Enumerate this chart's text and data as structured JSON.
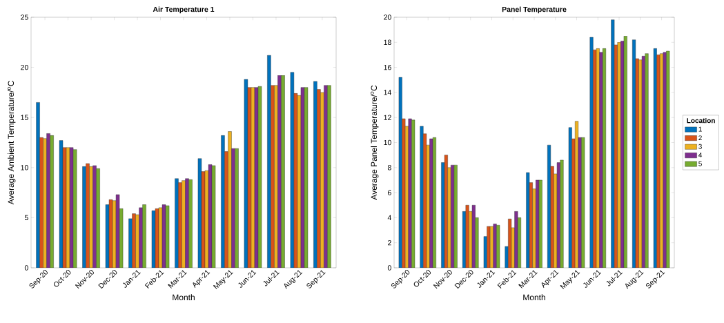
{
  "chart_data": [
    {
      "type": "bar",
      "title": "Air Temperature 1",
      "xlabel": "Month",
      "ylabel": "Average Ambient Temperature/$^{o}$C",
      "categories": [
        "Sep-20",
        "Oct-20",
        "Nov-20",
        "Dec-20",
        "Jan-21",
        "Feb-21",
        "Mar-21",
        "Apr-21",
        "May-21",
        "Jun-21",
        "Jul-21",
        "Aug-21",
        "Sep-21"
      ],
      "ylim": [
        0,
        25
      ],
      "yticks": [
        0,
        5,
        10,
        15,
        20,
        25
      ],
      "legend": false,
      "series": [
        {
          "color": "#0072bd",
          "values": [
            16.5,
            12.7,
            10.1,
            6.3,
            4.9,
            5.7,
            8.9,
            10.9,
            13.2,
            18.8,
            21.2,
            19.5,
            18.6
          ]
        },
        {
          "color": "#d95319",
          "values": [
            13.0,
            12.0,
            10.4,
            6.8,
            5.4,
            5.9,
            8.5,
            9.6,
            11.6,
            18.0,
            18.2,
            17.4,
            17.8
          ]
        },
        {
          "color": "#edb120",
          "values": [
            12.9,
            12.0,
            10.1,
            6.7,
            5.3,
            6.0,
            8.7,
            9.7,
            13.6,
            18.0,
            18.2,
            17.2,
            17.5
          ]
        },
        {
          "color": "#7e2f8e",
          "values": [
            13.4,
            12.0,
            10.2,
            7.3,
            6.0,
            6.3,
            8.9,
            10.3,
            11.9,
            18.0,
            19.2,
            18.0,
            18.2
          ]
        },
        {
          "color": "#77ac30",
          "values": [
            13.2,
            11.8,
            9.9,
            5.9,
            6.3,
            6.2,
            8.8,
            10.2,
            11.9,
            18.1,
            19.2,
            18.0,
            18.2
          ]
        }
      ]
    },
    {
      "type": "bar",
      "title": "Panel Temperature",
      "xlabel": "Month",
      "ylabel": "Average Panel Temperature/$^{o}$C",
      "legend_title": "Location",
      "categories": [
        "Sep-20",
        "Oct-20",
        "Nov-20",
        "Dec-20",
        "Jan-21",
        "Feb-21",
        "Mar-21",
        "Apr-21",
        "May-21",
        "Jun-21",
        "Jul-21",
        "Aug-21",
        "Sep-21"
      ],
      "ylim": [
        0,
        20
      ],
      "yticks": [
        0,
        2,
        4,
        6,
        8,
        10,
        12,
        14,
        16,
        18,
        20
      ],
      "legend": "right",
      "series": [
        {
          "name": "1",
          "color": "#0072bd",
          "values": [
            15.2,
            11.3,
            8.4,
            4.5,
            2.5,
            1.7,
            7.6,
            9.8,
            11.2,
            18.4,
            19.8,
            18.2,
            17.5
          ]
        },
        {
          "name": "2",
          "color": "#d95319",
          "values": [
            11.9,
            10.7,
            9.0,
            5.0,
            3.3,
            3.9,
            6.8,
            8.1,
            10.3,
            17.4,
            17.8,
            16.7,
            17.0
          ]
        },
        {
          "name": "3",
          "color": "#edb120",
          "values": [
            11.3,
            9.8,
            8.0,
            4.5,
            3.3,
            3.2,
            6.3,
            7.5,
            11.7,
            17.5,
            18.0,
            16.6,
            17.1
          ]
        },
        {
          "name": "4",
          "color": "#7e2f8e",
          "values": [
            11.9,
            10.3,
            8.2,
            5.0,
            3.5,
            4.5,
            7.0,
            8.4,
            10.4,
            17.2,
            18.1,
            16.9,
            17.2
          ]
        },
        {
          "name": "5",
          "color": "#77ac30",
          "values": [
            11.8,
            10.4,
            8.2,
            4.0,
            3.4,
            4.0,
            7.0,
            8.6,
            10.4,
            17.5,
            18.5,
            17.1,
            17.3
          ]
        }
      ]
    }
  ]
}
